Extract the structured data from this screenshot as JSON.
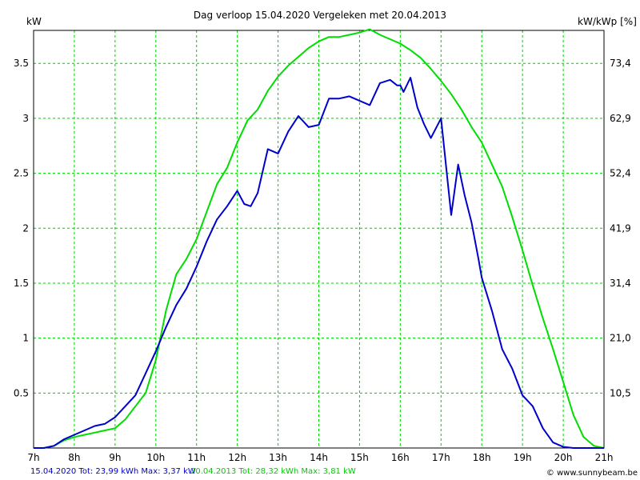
{
  "chart_data": {
    "type": "line",
    "title": "Dag  verloop 15.04.2020   Vergeleken met 20.04.2013",
    "ylabel_left": "kW",
    "ylabel_right": "kW/kWp [%]",
    "x_ticks": [
      "7h",
      "8h",
      "9h",
      "10h",
      "11h",
      "12h",
      "13h",
      "14h",
      "15h",
      "16h",
      "17h",
      "18h",
      "19h",
      "20h",
      "21h"
    ],
    "x_range_hours": [
      7,
      21
    ],
    "y_ticks_left": [
      "0.5",
      "1",
      "1.5",
      "2",
      "2.5",
      "3",
      "3.5"
    ],
    "y_ticks_right": [
      "10,5",
      "21,0",
      "31,4",
      "41,9",
      "52,4",
      "62,9",
      "73,4"
    ],
    "ylim": [
      0,
      3.8
    ],
    "grid": true,
    "series": [
      {
        "name": "15.04.2020",
        "color": "#0000cc",
        "x": [
          7.0,
          7.25,
          7.5,
          7.75,
          8.0,
          8.25,
          8.5,
          8.75,
          9.0,
          9.25,
          9.5,
          9.75,
          10.0,
          10.25,
          10.5,
          10.75,
          11.0,
          11.25,
          11.5,
          11.75,
          12.0,
          12.17,
          12.33,
          12.5,
          12.75,
          13.0,
          13.25,
          13.5,
          13.75,
          14.0,
          14.25,
          14.5,
          14.75,
          15.0,
          15.25,
          15.5,
          15.75,
          15.92,
          16.0,
          16.08,
          16.25,
          16.42,
          16.58,
          16.75,
          17.0,
          17.25,
          17.42,
          17.58,
          17.75,
          17.92,
          18.0,
          18.25,
          18.5,
          18.75,
          19.0,
          19.25,
          19.5,
          19.75,
          20.0,
          20.25,
          20.5,
          21.0
        ],
        "values": [
          0,
          0,
          0.02,
          0.08,
          0.12,
          0.16,
          0.2,
          0.22,
          0.28,
          0.38,
          0.48,
          0.68,
          0.88,
          1.1,
          1.3,
          1.45,
          1.65,
          1.88,
          2.08,
          2.2,
          2.34,
          2.22,
          2.2,
          2.32,
          2.72,
          2.68,
          2.88,
          3.02,
          2.92,
          2.94,
          3.18,
          3.18,
          3.2,
          3.16,
          3.12,
          3.32,
          3.35,
          3.3,
          3.3,
          3.24,
          3.37,
          3.1,
          2.95,
          2.82,
          3.0,
          2.12,
          2.58,
          2.3,
          2.05,
          1.72,
          1.55,
          1.25,
          0.9,
          0.72,
          0.48,
          0.38,
          0.18,
          0.05,
          0.01,
          0,
          0,
          0
        ]
      },
      {
        "name": "20.04.2013",
        "color": "#00dd00",
        "x": [
          7.0,
          7.25,
          7.5,
          7.75,
          8.0,
          8.25,
          8.5,
          8.75,
          9.0,
          9.25,
          9.5,
          9.75,
          10.0,
          10.25,
          10.5,
          10.75,
          11.0,
          11.25,
          11.5,
          11.75,
          12.0,
          12.25,
          12.5,
          12.75,
          13.0,
          13.25,
          13.5,
          13.75,
          14.0,
          14.25,
          14.5,
          14.75,
          15.0,
          15.25,
          15.5,
          15.75,
          16.0,
          16.25,
          16.5,
          16.75,
          17.0,
          17.25,
          17.5,
          17.75,
          18.0,
          18.25,
          18.5,
          18.75,
          19.0,
          19.25,
          19.5,
          19.75,
          20.0,
          20.25,
          20.5,
          20.75,
          21.0
        ],
        "values": [
          0,
          0,
          0.02,
          0.07,
          0.1,
          0.12,
          0.14,
          0.16,
          0.18,
          0.26,
          0.38,
          0.5,
          0.8,
          1.25,
          1.58,
          1.72,
          1.9,
          2.15,
          2.4,
          2.55,
          2.78,
          2.98,
          3.08,
          3.25,
          3.38,
          3.48,
          3.56,
          3.64,
          3.7,
          3.74,
          3.74,
          3.76,
          3.78,
          3.81,
          3.76,
          3.72,
          3.68,
          3.62,
          3.55,
          3.45,
          3.34,
          3.22,
          3.08,
          2.92,
          2.78,
          2.58,
          2.38,
          2.1,
          1.8,
          1.48,
          1.18,
          0.9,
          0.6,
          0.3,
          0.1,
          0.02,
          0
        ]
      }
    ]
  },
  "footer": {
    "series1_text": "15.04.2020 Tot: 23,99 kWh Max: 3,37 kW",
    "series2_text": "20.04.2013 Tot: 28,32 kWh Max: 3,81 kW",
    "credit_icon": "copyright-symbol",
    "credit_text": "© www.sunnybeam.be"
  }
}
